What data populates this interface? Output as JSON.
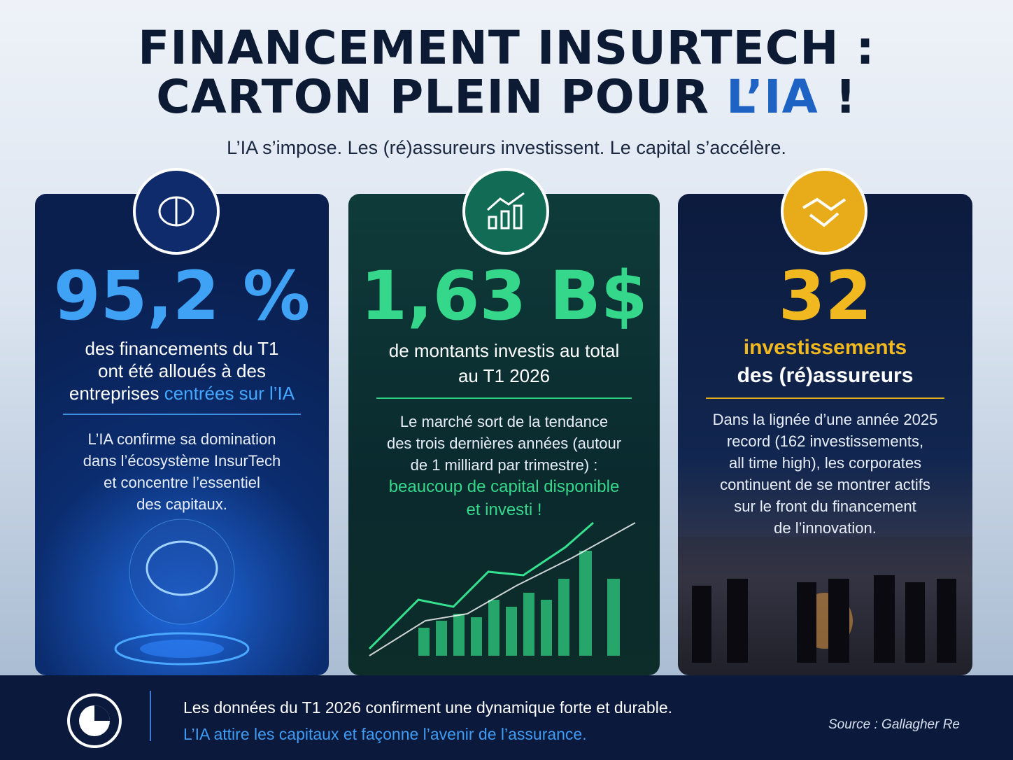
{
  "header": {
    "title_line1": "FINANCEMENT INSURTECH :",
    "title_line2_a": "CARTON PLEIN POUR ",
    "title_line2_b": "L’IA",
    "title_line2_c": " !",
    "subtitle": "L’IA s’impose. Les (ré)assureurs investissent. Le capital s’accélère."
  },
  "cards": [
    {
      "stat": "95,2 %",
      "desc_lines": [
        "des financements du T1",
        "ont été alloués à des",
        "entreprises "
      ],
      "desc_highlight": "centrées sur l’IA",
      "note_lines": [
        "L’IA confirme sa domination",
        "dans l’écosystème InsurTech",
        "et concentre l’essentiel",
        "des capitaux."
      ]
    },
    {
      "stat": "1,63 B$",
      "desc_lines": [
        "de montants investis au total",
        "au T1 2026"
      ],
      "note_lines": [
        "Le marché sort de la tendance",
        "des trois dernières années (autour",
        "de 1 milliard par trimestre) :"
      ],
      "note_highlight": [
        "beaucoup de capital disponible",
        "et investi !"
      ]
    },
    {
      "stat": "32",
      "desc_highlight": "investissements",
      "desc_lines": [
        "des (ré)assureurs"
      ],
      "note_lines": [
        "Dans la lignée d’une année 2025",
        "record (162 investissements,",
        "all time high), les corporates",
        "continuent de se montrer actifs",
        "sur le front du financement",
        "de l’innovation."
      ]
    }
  ],
  "footer": {
    "line1": "Les données du T1 2026 confirment une dynamique forte et durable.",
    "line2": "L’IA attire les capitaux et façonne l’avenir de l’assurance.",
    "source": "Source : Gallagher Re"
  }
}
